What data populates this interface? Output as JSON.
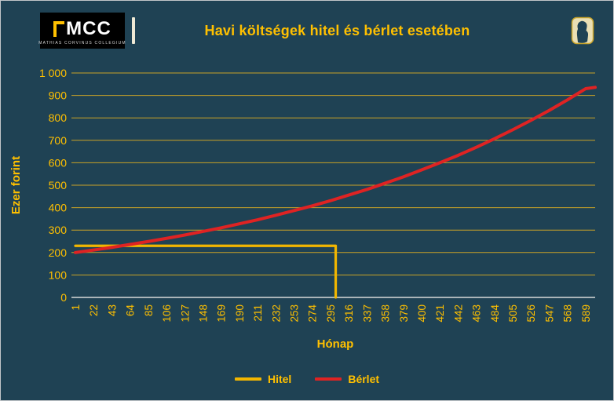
{
  "header": {
    "logo": {
      "text": "MCC",
      "subtext": "MATHIAS CORVINUS COLLEGIUM"
    },
    "title": "Havi költségek hitel és bérlet esetében"
  },
  "colors": {
    "background": "#1f4254",
    "accent_yellow": "#ffc000",
    "grid_yellow": "#c9a227",
    "axis_gray": "#d9d9d9",
    "hitel_yellow": "#f2b600",
    "berlet_red": "#df2323"
  },
  "chart_data": {
    "type": "line",
    "title": "Havi költségek hitel és bérlet esetében",
    "xlabel": "Hónap",
    "ylabel": "Ezer forint",
    "xlim": [
      1,
      600
    ],
    "ylim": [
      0,
      1000
    ],
    "grid": "horizontal",
    "legend_position": "bottom",
    "y_ticks": [
      0,
      100,
      200,
      300,
      400,
      500,
      600,
      700,
      800,
      900,
      1000
    ],
    "y_tick_labels": [
      "0",
      "100",
      "200",
      "300",
      "400",
      "500",
      "600",
      "700",
      "800",
      "900",
      "1 000"
    ],
    "x_ticks": [
      1,
      22,
      43,
      64,
      85,
      106,
      127,
      148,
      169,
      190,
      211,
      232,
      253,
      274,
      295,
      316,
      337,
      358,
      379,
      400,
      421,
      442,
      463,
      484,
      505,
      526,
      547,
      568,
      589
    ],
    "x_tick_labels": [
      "1",
      "22",
      "43",
      "64",
      "85",
      "106",
      "127",
      "148",
      "169",
      "190",
      "211",
      "232",
      "253",
      "274",
      "295",
      "316",
      "337",
      "358",
      "379",
      "400",
      "421",
      "442",
      "463",
      "484",
      "505",
      "526",
      "547",
      "568",
      "589"
    ],
    "series": [
      {
        "name": "Hitel",
        "color": "#f2b600",
        "x": [
          1,
          301,
          301
        ],
        "values": [
          230,
          230,
          0
        ],
        "note": "flat monthly cost ~230 until loan paid off around month 301, then drops to 0"
      },
      {
        "name": "Bérlet",
        "color": "#df2323",
        "x": [
          1,
          22,
          43,
          64,
          85,
          106,
          127,
          148,
          169,
          190,
          211,
          232,
          253,
          274,
          295,
          316,
          337,
          358,
          379,
          400,
          421,
          442,
          463,
          484,
          505,
          526,
          547,
          568,
          589,
          600
        ],
        "values": [
          200,
          211,
          223,
          236,
          249,
          263,
          278,
          294,
          310,
          328,
          346,
          366,
          387,
          408,
          431,
          456,
          481,
          509,
          537,
          568,
          600,
          633,
          669,
          707,
          747,
          789,
          833,
          880,
          930,
          936
        ],
        "note": "rent rising smoothly from ~200 to ~930"
      }
    ]
  }
}
